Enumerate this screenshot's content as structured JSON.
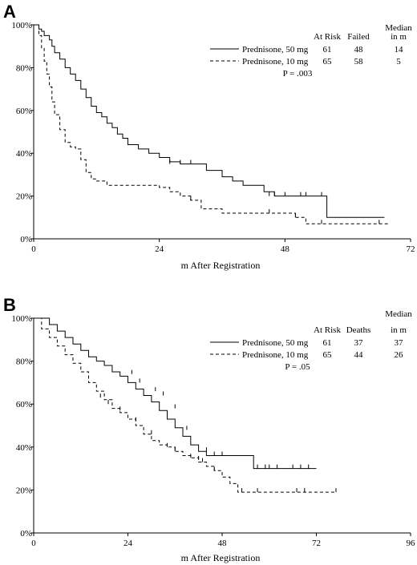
{
  "chart_data": [
    {
      "panel_label": "A",
      "type": "line",
      "step": true,
      "xlabel": "m After Registration",
      "ylabel": "",
      "xlim": [
        0,
        72
      ],
      "ylim": [
        0,
        100
      ],
      "xticks": [
        "0",
        "24",
        "48",
        "72"
      ],
      "yticks": [
        "0%",
        "20%",
        "40%",
        "60%",
        "80%",
        "100%"
      ],
      "legend": {
        "position": "top-right",
        "headers": [
          "At Risk",
          "Failed",
          "Median",
          "in m"
        ],
        "rows": [
          {
            "name": "Prednisone, 50 mg",
            "style": "solid",
            "at_risk": "61",
            "events": "48",
            "median": "14"
          },
          {
            "name": "Prednisone, 10 mg",
            "style": "dashed",
            "at_risk": "65",
            "events": "58",
            "median": "5"
          }
        ],
        "pvalue": "P = .003"
      },
      "series": [
        {
          "name": "Prednisone, 50 mg",
          "style": "solid",
          "x": [
            0,
            1,
            1.5,
            2,
            3,
            3.5,
            4,
            5,
            6,
            7,
            8,
            9,
            10,
            11,
            12,
            13,
            14,
            15,
            16,
            17,
            18,
            20,
            22,
            24,
            26,
            28,
            32,
            33,
            36,
            38,
            40,
            44,
            46,
            48,
            52,
            55,
            56,
            67
          ],
          "y": [
            100,
            98,
            97,
            95,
            93,
            90,
            87,
            84,
            80,
            77,
            74,
            70,
            66,
            62,
            59,
            57,
            54,
            52,
            49,
            47,
            44,
            42,
            40,
            38,
            36,
            35,
            35,
            32,
            29,
            27,
            25,
            22,
            20,
            20,
            20,
            20,
            10,
            10
          ],
          "censor_x": [
            26,
            28,
            30,
            45,
            46,
            48,
            51,
            52,
            55
          ],
          "censor_y": [
            35,
            35,
            35,
            20,
            20,
            20,
            20,
            20,
            20
          ]
        },
        {
          "name": "Prednisone, 10 mg",
          "style": "dashed",
          "x": [
            0,
            1,
            1.5,
            2,
            2.5,
            3,
            3.5,
            4,
            5,
            6,
            7,
            8,
            9,
            10,
            11,
            12,
            13,
            14,
            16,
            18,
            20,
            22,
            24,
            26,
            28,
            30,
            32,
            36,
            40,
            44,
            46,
            48,
            50,
            52,
            68
          ],
          "y": [
            100,
            95,
            89,
            83,
            77,
            71,
            64,
            58,
            51,
            45,
            43,
            42,
            37,
            31,
            28,
            27,
            27,
            25,
            25,
            25,
            25,
            25,
            24,
            22,
            20,
            18,
            14,
            12,
            12,
            12,
            12,
            12,
            10,
            7,
            7
          ],
          "censor_x": [
            30,
            45,
            50,
            55,
            66
          ],
          "censor_y": [
            18,
            12,
            10,
            7,
            7
          ]
        }
      ]
    },
    {
      "panel_label": "B",
      "type": "line",
      "step": true,
      "xlabel": "m After Registration",
      "ylabel": "",
      "xlim": [
        0,
        96
      ],
      "ylim": [
        0,
        100
      ],
      "xticks": [
        "0",
        "24",
        "48",
        "72",
        "96"
      ],
      "yticks": [
        "0%",
        "20%",
        "40%",
        "60%",
        "80%",
        "100%"
      ],
      "legend": {
        "position": "top-right",
        "headers": [
          "At Risk",
          "Deaths",
          "Median",
          "in m"
        ],
        "rows": [
          {
            "name": "Prednisone, 50 mg",
            "style": "solid",
            "at_risk": "61",
            "events": "37",
            "median": "37"
          },
          {
            "name": "Prednisone, 10 mg",
            "style": "dashed",
            "at_risk": "65",
            "events": "44",
            "median": "26"
          }
        ],
        "pvalue": "P = .05"
      },
      "series": [
        {
          "name": "Prednisone, 50 mg",
          "style": "solid",
          "x": [
            0,
            4,
            6,
            8,
            10,
            12,
            14,
            16,
            18,
            20,
            22,
            24,
            26,
            28,
            30,
            32,
            34,
            36,
            38,
            40,
            42,
            44,
            48,
            52,
            56,
            72
          ],
          "y": [
            100,
            97,
            94,
            91,
            88,
            85,
            82,
            80,
            78,
            75,
            73,
            70,
            67,
            64,
            61,
            57,
            53,
            49,
            45,
            41,
            38,
            36,
            36,
            36,
            30,
            30
          ],
          "censor_x": [
            25,
            27,
            31,
            33,
            36,
            39,
            44,
            46,
            48,
            57,
            59,
            60,
            62,
            66,
            68,
            70
          ],
          "censor_y": [
            74,
            70,
            66,
            64,
            58,
            48,
            38,
            36,
            36,
            30,
            30,
            30,
            30,
            30,
            30,
            30
          ]
        },
        {
          "name": "Prednisone, 10 mg",
          "style": "dashed",
          "x": [
            0,
            2,
            4,
            6,
            8,
            10,
            12,
            14,
            16,
            18,
            20,
            22,
            24,
            26,
            28,
            30,
            32,
            34,
            36,
            38,
            40,
            42,
            44,
            46,
            48,
            50,
            52,
            56,
            77
          ],
          "y": [
            100,
            95,
            91,
            87,
            83,
            79,
            75,
            70,
            66,
            62,
            58,
            56,
            53,
            50,
            46,
            43,
            41,
            40,
            38,
            36,
            35,
            33,
            31,
            29,
            26,
            23,
            19,
            19,
            19
          ],
          "censor_x": [
            17,
            19,
            22,
            26,
            30,
            34,
            36,
            40,
            42,
            43,
            46,
            53,
            57,
            67,
            69,
            77
          ],
          "censor_y": [
            63,
            60,
            57,
            52,
            46,
            40,
            38,
            35,
            34,
            33,
            29,
            19,
            19,
            19,
            19,
            19
          ]
        }
      ]
    }
  ]
}
